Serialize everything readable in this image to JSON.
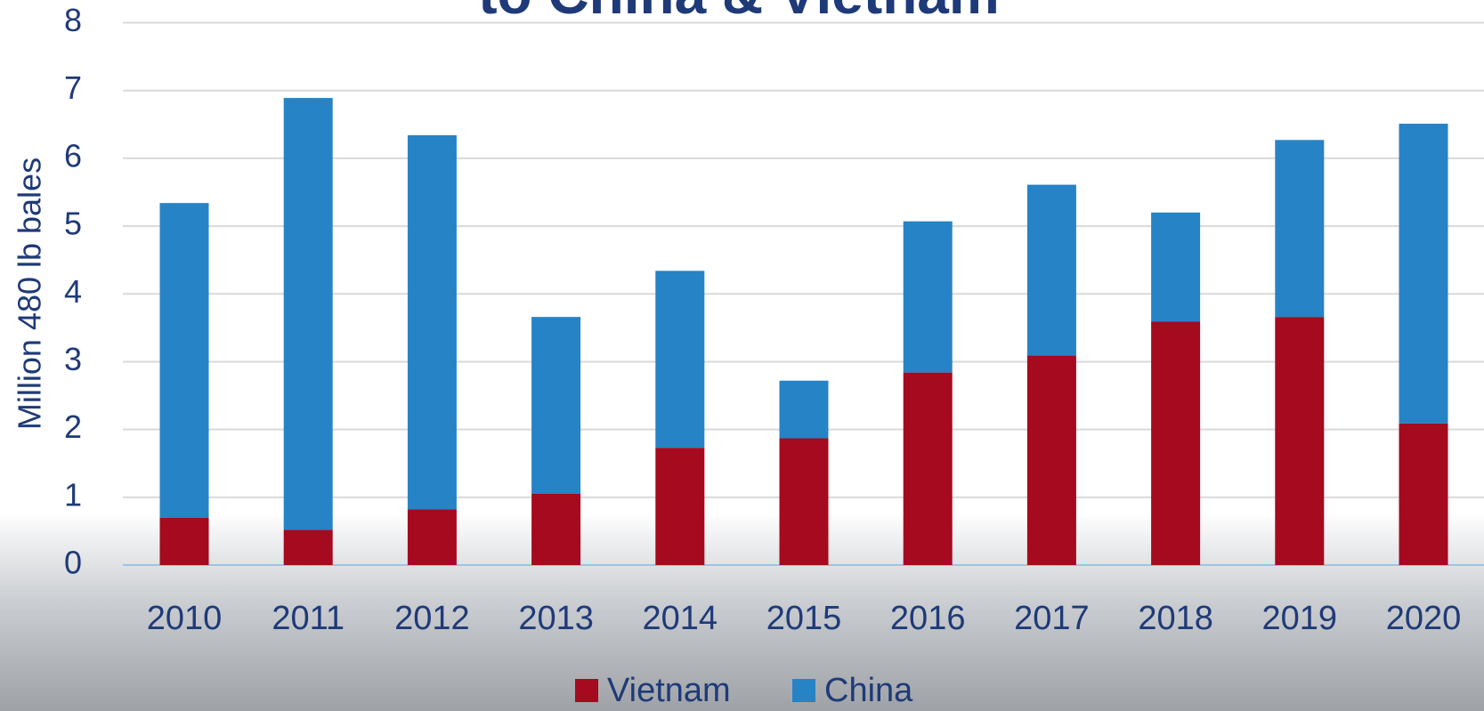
{
  "chart_data": {
    "type": "bar",
    "stacked": true,
    "title": "to China & Vietnam",
    "y_label": "Million 480 lb bales",
    "categories": [
      "2010",
      "2011",
      "2012",
      "2013",
      "2014",
      "2015",
      "2016",
      "2017",
      "2018",
      "2019",
      "2020"
    ],
    "series": [
      {
        "name": "Vietnam",
        "color": "#a50a1e",
        "values": [
          0.7,
          0.52,
          0.82,
          1.05,
          1.73,
          1.87,
          2.84,
          3.09,
          3.59,
          3.66,
          2.09
        ]
      },
      {
        "name": "China",
        "color": "#2683c6",
        "values": [
          4.64,
          6.37,
          5.52,
          2.61,
          2.61,
          0.85,
          2.23,
          2.52,
          1.61,
          2.61,
          4.42
        ]
      }
    ],
    "ylim": [
      0,
      8
    ],
    "yticks": [
      0,
      1,
      2,
      3,
      4,
      5,
      6,
      7,
      8
    ],
    "grid": true,
    "legend": "bottom"
  }
}
